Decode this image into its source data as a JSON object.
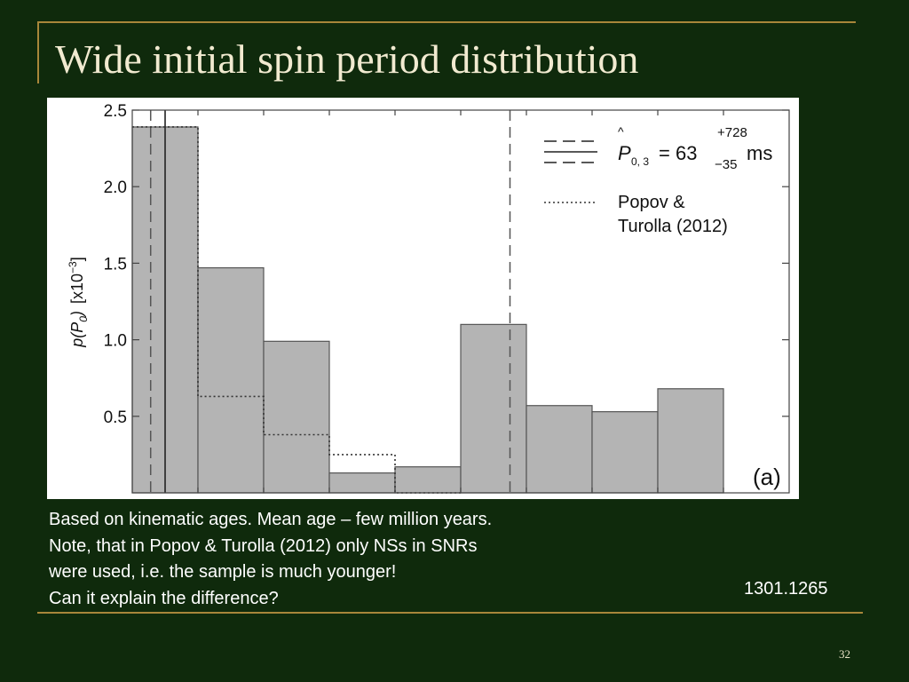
{
  "slide": {
    "title": "Wide initial spin period distribution",
    "notes": [
      "Based on kinematic ages. Mean age – few million years.",
      "Note, that in Popov & Turolla (2012) only NSs in SNRs",
      "were used, i.e. the sample is much younger!",
      "Can it explain the difference?"
    ],
    "reference": "1301.1265",
    "page_number": "32"
  },
  "chart_data": {
    "type": "bar",
    "panel_label": "(a)",
    "ylabel": {
      "main": "p(P",
      "sub": "0",
      "close": ")",
      "unit_open": "[x10",
      "unit_exp": "−3",
      "unit_close": "]"
    },
    "ylim": [
      0,
      2.5
    ],
    "yticks": [
      0.5,
      1.0,
      1.5,
      2.0,
      2.5
    ],
    "ytick_labels": [
      "0.5",
      "1.0",
      "1.5",
      "2.0",
      "2.5"
    ],
    "xlim": [
      0,
      10
    ],
    "x_edges": [
      0,
      1,
      2,
      3,
      4,
      5,
      6,
      7,
      8,
      9
    ],
    "histogram_values": [
      2.39,
      1.47,
      0.99,
      0.13,
      0.17,
      1.1,
      0.57,
      0.53,
      0.68
    ],
    "popov_turolla_edges": [
      0,
      1,
      2,
      3,
      4,
      5
    ],
    "popov_turolla_values": [
      2.39,
      0.63,
      0.38,
      0.25,
      0
    ],
    "estimate_lines": {
      "solid": 0.5,
      "dashed": [
        0.28,
        5.75
      ]
    },
    "legend": {
      "estimate": {
        "symbol": "P",
        "sub": "0, 3",
        "value": "= 63",
        "upper": "+728",
        "lower": "−35",
        "unit": "ms"
      },
      "popov": {
        "line1": "Popov &",
        "line2": "Turolla (2012)"
      }
    },
    "colors": {
      "bar_fill": "#b4b4b4",
      "bar_stroke": "#555555",
      "background": "#ffffff"
    }
  }
}
